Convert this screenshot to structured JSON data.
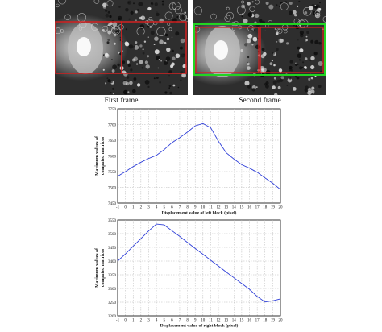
{
  "photos": {
    "first_caption": "First frame",
    "second_caption": "Second frame",
    "colors": {
      "block_outline": "#d42020",
      "search_band": "#22d422"
    }
  },
  "chart_data": [
    {
      "type": "line",
      "xlabel": "Displacement value of left block (pixel)",
      "ylabel": "Maximum values of computed matrices",
      "xlim": [
        -1,
        20
      ],
      "ylim": [
        7450,
        7750
      ],
      "x_ticks": [
        -1,
        0,
        1,
        2,
        3,
        4,
        5,
        6,
        7,
        8,
        9,
        10,
        11,
        12,
        13,
        14,
        15,
        16,
        17,
        18,
        19,
        20
      ],
      "y_ticks": [
        7450,
        7500,
        7550,
        7600,
        7650,
        7700,
        7750
      ],
      "grid": true,
      "series": [
        {
          "color": "#2f3fd8",
          "x": [
            -1,
            0,
            1,
            2,
            3,
            4,
            5,
            6,
            7,
            8,
            9,
            10,
            11,
            12,
            13,
            14,
            15,
            16,
            17,
            18,
            19,
            20
          ],
          "y": [
            7535,
            7550,
            7566,
            7580,
            7592,
            7602,
            7620,
            7642,
            7658,
            7676,
            7696,
            7703,
            7690,
            7647,
            7610,
            7590,
            7572,
            7561,
            7548,
            7530,
            7513,
            7493
          ]
        }
      ]
    },
    {
      "type": "line",
      "xlabel": "Displacement value of right block (pixel)",
      "ylabel": "Maximum values of computed matrices",
      "xlim": [
        -1,
        20
      ],
      "ylim": [
        3200,
        3550
      ],
      "x_ticks": [
        -1,
        0,
        1,
        2,
        3,
        4,
        5,
        6,
        7,
        8,
        9,
        10,
        11,
        12,
        13,
        14,
        15,
        16,
        17,
        18,
        19,
        20
      ],
      "y_ticks": [
        3200,
        3250,
        3300,
        3350,
        3400,
        3450,
        3500,
        3550
      ],
      "grid": true,
      "series": [
        {
          "color": "#2f3fd8",
          "x": [
            -1,
            0,
            1,
            2,
            3,
            4,
            5,
            6,
            7,
            8,
            9,
            10,
            11,
            12,
            13,
            14,
            15,
            16,
            17,
            18,
            19,
            20
          ],
          "y": [
            3400,
            3426,
            3454,
            3482,
            3510,
            3535,
            3532,
            3511,
            3490,
            3468,
            3446,
            3425,
            3403,
            3382,
            3360,
            3339,
            3318,
            3297,
            3271,
            3251,
            3255,
            3262
          ]
        }
      ]
    }
  ]
}
